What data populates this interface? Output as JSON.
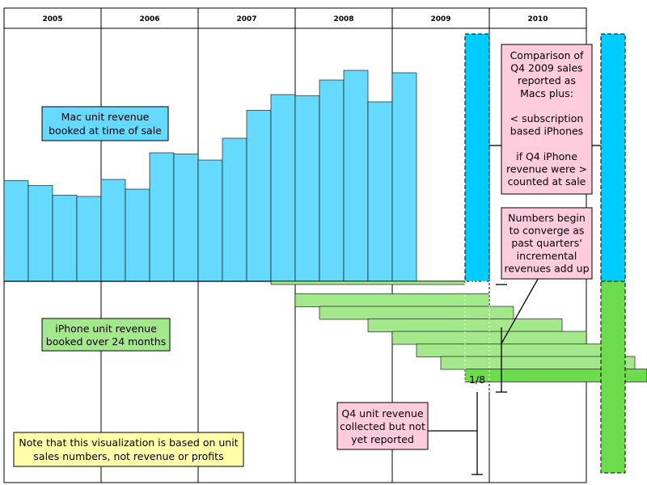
{
  "chart_data": {
    "type": "bar",
    "years": [
      "2005",
      "2006",
      "2007",
      "2008",
      "2009",
      "2010"
    ],
    "mac_series": {
      "label_lines": [
        "Mac unit revenue",
        "booked at time of sale"
      ],
      "color": "#66D9FF",
      "values": [
        4.15,
        3.95,
        3.55,
        3.5,
        4.2,
        3.8,
        5.3,
        5.25,
        5.0,
        5.9,
        7.05,
        7.7,
        7.65,
        8.3,
        8.7,
        7.4,
        8.6
      ]
    },
    "q4_2009_highlight": {
      "color": "#00CCFF",
      "value": 10.1
    },
    "iphone_series": {
      "label_lines": [
        "iPhone unit revenue",
        "booked over 24 months"
      ],
      "light_color": "#A4E88C",
      "dark_color": "#6CDB4C",
      "slice_values": [
        0.2,
        0.3,
        0.45,
        1.55,
        2.05,
        2.6,
        3.15,
        4.35
      ],
      "stack_total": 4.35
    },
    "annotations": {
      "comparison_lines": [
        "Comparison of",
        "Q4 2009 sales",
        "reported as",
        "Macs plus:",
        "",
        "< subscription",
        "based iPhones",
        "",
        "if Q4 iPhone",
        "revenue were >",
        "counted at sale"
      ],
      "converge_lines": [
        "Numbers begin",
        "to converge as",
        "past quarters'",
        "incremental",
        "revenues add up"
      ],
      "collected_lines": [
        "Q4 unit revenue",
        "collected but not",
        "yet reported"
      ],
      "fraction": "1/8",
      "note_lines": [
        "Note that this visualization is based on unit",
        "sales numbers, not revenue or profits"
      ]
    },
    "colors": {
      "pink_note": "#FFCCDD",
      "yellow_note": "#FFFFAA"
    }
  }
}
